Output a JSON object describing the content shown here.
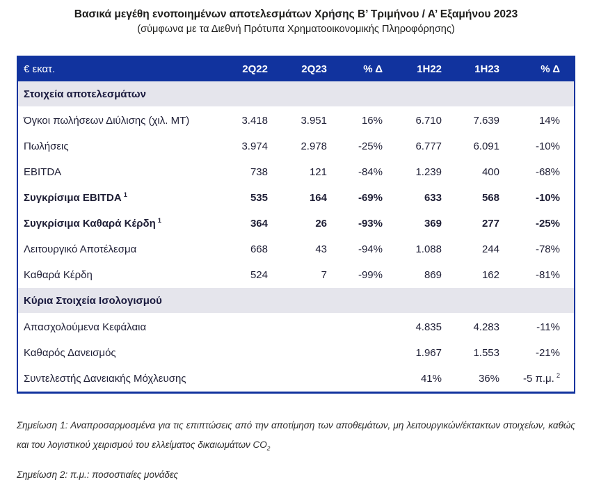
{
  "page": {
    "title": "Βασικά μεγέθη ενοποιημένων αποτελεσμάτων Χρήσης Β’ Τριμήνου / Α’ Εξαμήνου 2023",
    "subtitle": "(σύμφωνα με τα Διεθνή Πρότυπα Χρηματοοικονομικής Πληροφόρησης)"
  },
  "table": {
    "unit_label": "€ εκατ.",
    "columns": [
      "2Q22",
      "2Q23",
      "% Δ",
      "1H22",
      "1H23",
      "% Δ"
    ],
    "sections": [
      {
        "heading": "Στοιχεία αποτελεσμάτων",
        "rows": [
          {
            "label": "Όγκοι πωλήσεων Διύλισης (χιλ. ΜΤ)",
            "bold": false,
            "values": [
              "3.418",
              "3.951",
              "16%",
              "6.710",
              "7.639",
              "14%"
            ]
          },
          {
            "label": "Πωλήσεις",
            "bold": false,
            "values": [
              "3.974",
              "2.978",
              "-25%",
              "6.777",
              "6.091",
              "-10%"
            ]
          },
          {
            "label": "EBITDA",
            "bold": false,
            "values": [
              "738",
              "121",
              "-84%",
              "1.239",
              "400",
              "-68%"
            ]
          },
          {
            "label": "Συγκρίσιμα EBITDA",
            "label_sup": "1",
            "bold": true,
            "values": [
              "535",
              "164",
              "-69%",
              "633",
              "568",
              "-10%"
            ]
          },
          {
            "label": "Συγκρίσιμα Καθαρά Κέρδη",
            "label_sup": "1",
            "bold": true,
            "values": [
              "364",
              "26",
              "-93%",
              "369",
              "277",
              "-25%"
            ]
          },
          {
            "label": "Λειτουργικό Αποτέλεσμα",
            "bold": false,
            "values": [
              "668",
              "43",
              "-94%",
              "1.088",
              "244",
              "-78%"
            ]
          },
          {
            "label": "Καθαρά Κέρδη",
            "bold": false,
            "values": [
              "524",
              "7",
              "-99%",
              "869",
              "162",
              "-81%"
            ]
          }
        ]
      },
      {
        "heading": "Κύρια Στοιχεία Ισολογισμού",
        "rows": [
          {
            "label": "Απασχολούμενα Κεφάλαια",
            "bold": false,
            "values": [
              "",
              "",
              "",
              "4.835",
              "4.283",
              "-11%"
            ]
          },
          {
            "label": "Καθαρός Δανεισμός",
            "bold": false,
            "values": [
              "",
              "",
              "",
              "1.967",
              "1.553",
              "-21%"
            ]
          },
          {
            "label": "Συντελεστής Δανειακής Μόχλευσης",
            "bold": false,
            "values": [
              "",
              "",
              "",
              "41%",
              "36%",
              {
                "text": "-5 π.μ.",
                "sup": "2"
              }
            ]
          }
        ]
      }
    ]
  },
  "footnotes": [
    {
      "text": "Σημείωση 1: Αναπροσαρμοσμένα για τις επιπτώσεις από την αποτίμηση των αποθεμάτων, μη λειτουργικών/έκτακτων στοιχείων, καθώς και του λογιστικού χειρισμού του ελλείματος δικαιωμάτων CO",
      "sub": "2",
      "justify": true
    },
    {
      "text": "Σημείωση 2: π.μ.: ποσοστιαίες μονάδες",
      "justify": false
    }
  ],
  "colors": {
    "header_bg": "#11339e",
    "header_text": "#ffffff",
    "section_bg": "#e5e5ec",
    "border": "#11339e",
    "body_text": "#1f1f36",
    "title_text": "#1d1d1b",
    "footnote_text": "#2b2b2b"
  }
}
